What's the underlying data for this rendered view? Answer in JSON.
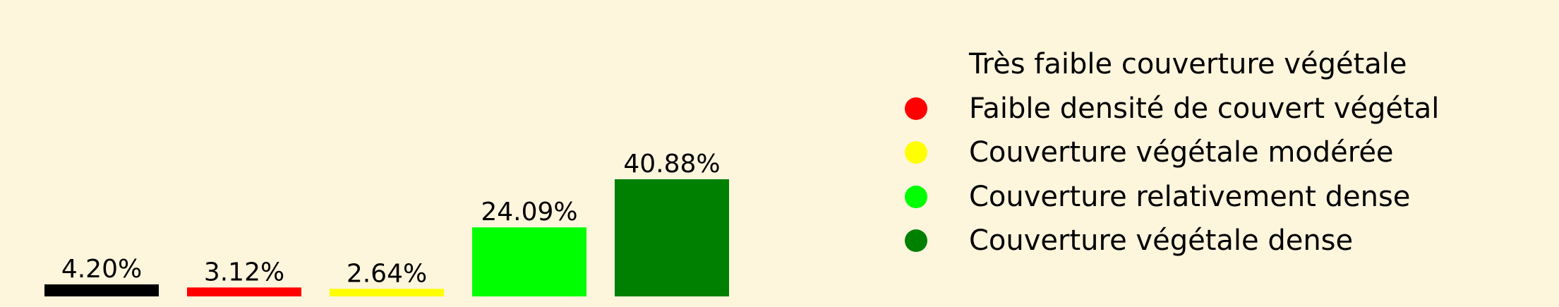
{
  "chart_data": {
    "type": "bar",
    "categories": [
      "Très faible couverture végétale",
      "Faible densité de couvert végétal",
      "Couverture végétale modérée",
      "Couverture relativement dense",
      "Couverture végétale dense"
    ],
    "values": [
      4.2,
      3.12,
      2.64,
      24.09,
      40.88
    ],
    "data_labels": [
      "4.20%",
      "3.12%",
      "2.64%",
      "24.09%",
      "40.88%"
    ],
    "colors": [
      "#000000",
      "#ff0000",
      "#ffff00",
      "#00ff00",
      "#008000"
    ],
    "title": "",
    "xlabel": "",
    "ylabel": "",
    "ylim": [
      0,
      40.88
    ],
    "grid": false,
    "axes_visible": false,
    "legend_position": "right",
    "background": "#fdf5dc"
  }
}
